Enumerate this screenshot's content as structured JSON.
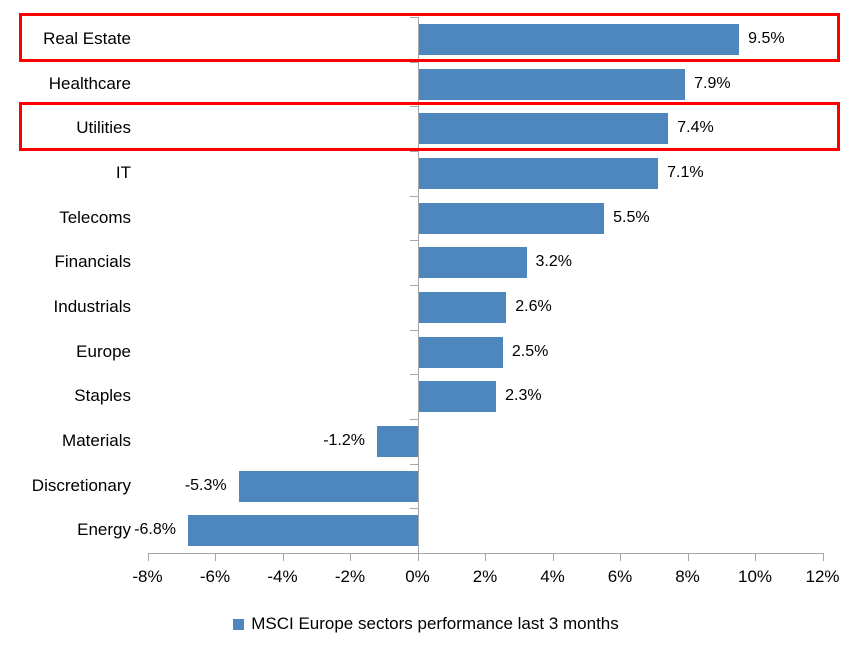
{
  "chart_data": {
    "type": "bar",
    "orientation": "horizontal",
    "title": "",
    "categories": [
      "Real Estate",
      "Healthcare",
      "Utilities",
      "IT",
      "Telecoms",
      "Financials",
      "Industrials",
      "Europe",
      "Staples",
      "Materials",
      "Discretionary",
      "Energy"
    ],
    "values": [
      9.5,
      7.9,
      7.4,
      7.1,
      5.5,
      3.2,
      2.6,
      2.5,
      2.3,
      -1.2,
      -5.3,
      -6.8
    ],
    "data_labels": [
      "9.5%",
      "7.9%",
      "7.4%",
      "7.1%",
      "5.5%",
      "3.2%",
      "2.6%",
      "2.5%",
      "2.3%",
      "-1.2%",
      "-5.3%",
      "-6.8%"
    ],
    "highlighted_categories": [
      "Real Estate",
      "Utilities"
    ],
    "x_axis": {
      "min": -8,
      "max": 12,
      "tick_step": 2,
      "tick_labels": [
        "-8%",
        "-6%",
        "-4%",
        "-2%",
        "0%",
        "2%",
        "4%",
        "6%",
        "8%",
        "10%",
        "12%"
      ]
    },
    "grid": false,
    "legend": {
      "position": "bottom",
      "label": "MSCI Europe sectors performance last 3 months"
    },
    "colors": {
      "bar": "#4E86BE",
      "highlight_box": "#FE0000",
      "axis": "#A6A6A6",
      "text": "#000000"
    }
  }
}
